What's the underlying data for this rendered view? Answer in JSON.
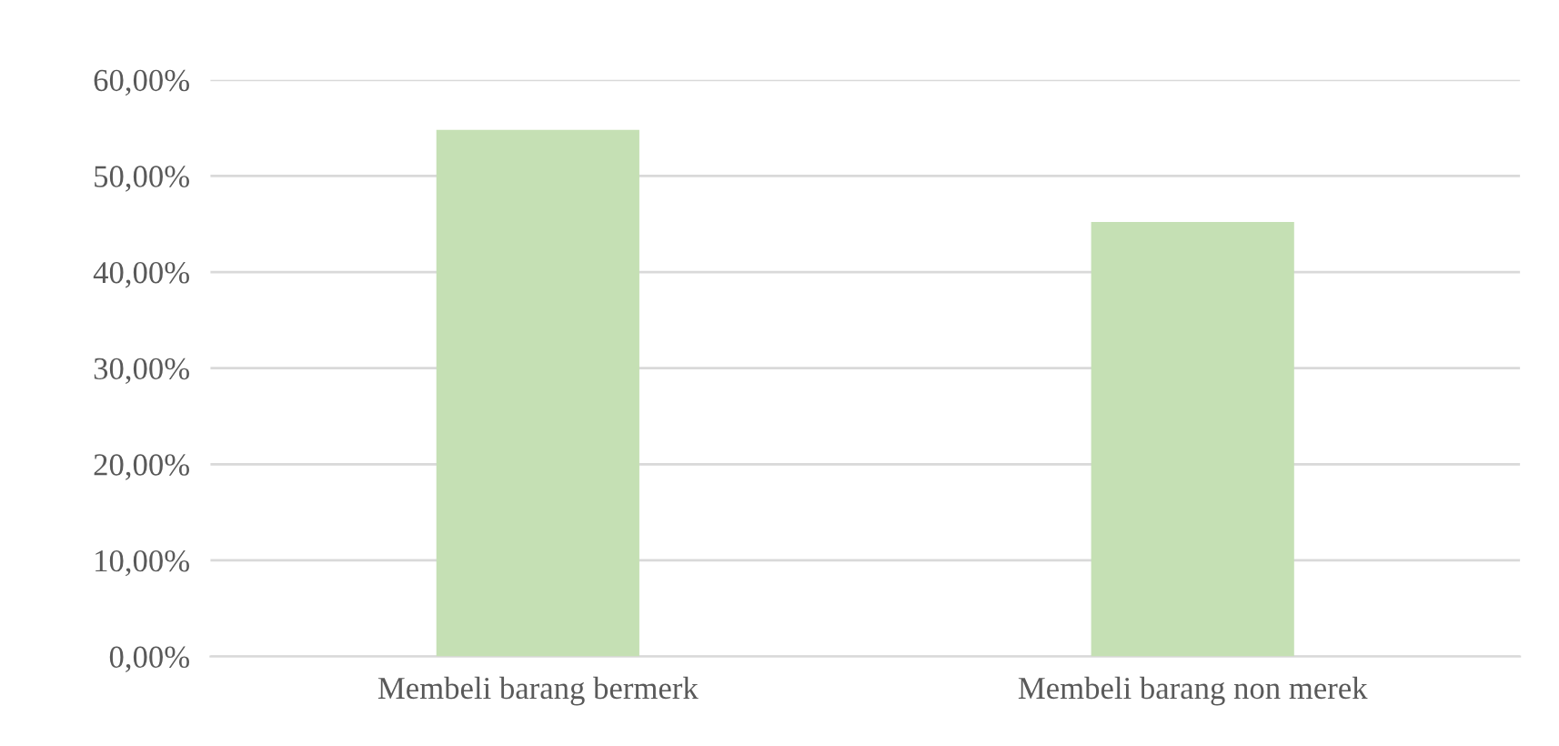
{
  "chart_data": {
    "type": "bar",
    "categories": [
      "Membeli barang bermerk",
      "Membeli barang non merek"
    ],
    "values": [
      54.8,
      45.2
    ],
    "color": "#c5e0b4",
    "ylim": [
      0,
      60
    ],
    "yticks": [
      {
        "value": 0,
        "label": "0,00%"
      },
      {
        "value": 10,
        "label": "10,00%"
      },
      {
        "value": 20,
        "label": "20,00%"
      },
      {
        "value": 30,
        "label": "30,00%"
      },
      {
        "value": 40,
        "label": "40,00%"
      },
      {
        "value": 50,
        "label": "50,00%"
      },
      {
        "value": 60,
        "label": "60,00%"
      }
    ],
    "grid": "y"
  }
}
